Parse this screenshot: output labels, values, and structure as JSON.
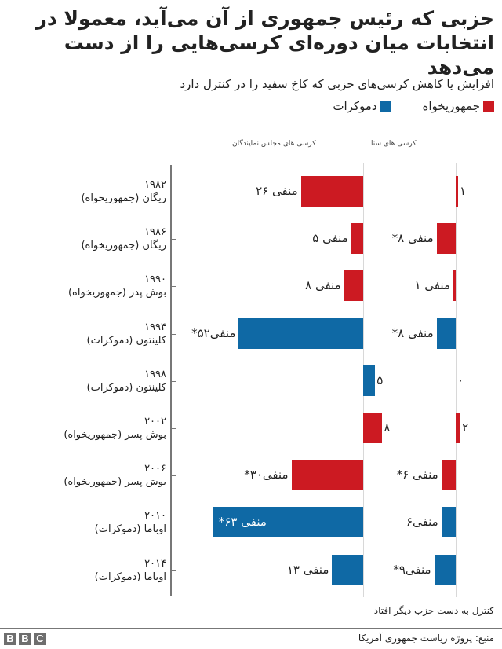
{
  "title": "حزبی که رئیس جمهوری از آن می‌آید، معمولا در انتخابات میان دوره‌ای کرسی‌هایی را از دست می‌دهد",
  "subtitle": "افزایش یا کاهش کرسی‌های حزبی که کاخ سفید را در کنترل دارد",
  "legend": {
    "republican": "جمهوریخواه",
    "democrat": "دموکرات"
  },
  "colors": {
    "republican": "#CC1A22",
    "democrat": "#0F69A5"
  },
  "columns": {
    "house": "کرسی های مجلس نمایندگان",
    "senate": "کرسی های سنا"
  },
  "rows": [
    {
      "year": "۱۹۸۲",
      "president": "ریگان (جمهوریخواه)",
      "party": "republican",
      "house": -26,
      "house_label": "منفی ۲۶",
      "senate": 1,
      "senate_label": "۱"
    },
    {
      "year": "۱۹۸۶",
      "president": "ریگان (جمهوریخواه)",
      "party": "republican",
      "house": -5,
      "house_label": "منفی ۵",
      "senate": -8,
      "senate_label": "منفی ۸*"
    },
    {
      "year": "۱۹۹۰",
      "president": "بوش پدر (جمهوریخواه)",
      "party": "republican",
      "house": -8,
      "house_label": "منفی ۸",
      "senate": -1,
      "senate_label": "منفی ۱"
    },
    {
      "year": "۱۹۹۴",
      "president": "کلینتون (دموکرات)",
      "party": "democrat",
      "house": -52,
      "house_label": "منفی۵۲*",
      "senate": -8,
      "senate_label": "منفی ۸*"
    },
    {
      "year": "۱۹۹۸",
      "president": "کلینتون (دموکرات)",
      "party": "democrat",
      "house": 5,
      "house_label": "۵",
      "senate": 0,
      "senate_label": "۰"
    },
    {
      "year": "۲۰۰۲",
      "president": "بوش پسر (جمهوریخواه)",
      "party": "republican",
      "house": 8,
      "house_label": "۸",
      "senate": 2,
      "senate_label": "۲"
    },
    {
      "year": "۲۰۰۶",
      "president": "بوش پسر (جمهوریخواه)",
      "party": "republican",
      "house": -30,
      "house_label": "منفی۳۰*",
      "senate": -6,
      "senate_label": "منفی ۶*"
    },
    {
      "year": "۲۰۱۰",
      "president": "اوباما (دموکرات)",
      "party": "democrat",
      "house": -63,
      "house_label": "منفی ۶۳*",
      "senate": -6,
      "senate_label": "منفی۶"
    },
    {
      "year": "۲۰۱۴",
      "president": "اوباما (دموکرات)",
      "party": "democrat",
      "house": -13,
      "house_label": "منفی ۱۳",
      "senate": -9,
      "senate_label": "منفی۹*"
    }
  ],
  "footnote": "کنترل به دست حزب دیگر افتاد",
  "source": "منبع: پروژه ریاست جمهوری آمریکا",
  "logo": [
    "B",
    "B",
    "C"
  ],
  "chart_data": {
    "type": "bar",
    "orientation": "horizontal",
    "title": "حزبی که رئیس جمهوری از آن می‌آید، معمولا در انتخابات میان دوره‌ای کرسی‌هایی را از دست می‌دهد",
    "subtitle": "افزایش یا کاهش کرسی‌های حزبی که کاخ سفید را در کنترل دارد",
    "categories": [
      "1982 ریگان (جمهوریخواه)",
      "1986 ریگان (جمهوریخواه)",
      "1990 بوش پدر (جمهوریخواه)",
      "1994 کلینتون (دموکرات)",
      "1998 کلینتون (دموکرات)",
      "2002 بوش پسر (جمهوریخواه)",
      "2006 بوش پسر (جمهوریخواه)",
      "2010 اوباما (دموکرات)",
      "2014 اوباما (دموکرات)"
    ],
    "series": [
      {
        "name": "کرسی های مجلس نمایندگان",
        "values": [
          -26,
          -5,
          -8,
          -52,
          5,
          8,
          -30,
          -63,
          -13
        ]
      },
      {
        "name": "کرسی های سنا",
        "values": [
          1,
          -8,
          -1,
          -8,
          0,
          2,
          -6,
          -6,
          -9
        ]
      }
    ],
    "bar_party": [
      "republican",
      "republican",
      "republican",
      "democrat",
      "democrat",
      "republican",
      "republican",
      "democrat",
      "democrat"
    ],
    "control_lost": {
      "house": [
        false,
        false,
        false,
        true,
        false,
        false,
        true,
        true,
        false
      ],
      "senate": [
        false,
        true,
        false,
        true,
        false,
        false,
        true,
        false,
        true
      ]
    },
    "legend": [
      {
        "label": "جمهوریخواه",
        "color": "#CC1A22"
      },
      {
        "label": "دموکرات",
        "color": "#0F69A5"
      }
    ],
    "legend_position": "top-right",
    "grid": false,
    "xlabel": "",
    "ylabel": "",
    "annotation": "* کنترل به دست حزب دیگر افتاد",
    "source": "منبع: پروژه ریاست جمهوری آمریکا"
  }
}
